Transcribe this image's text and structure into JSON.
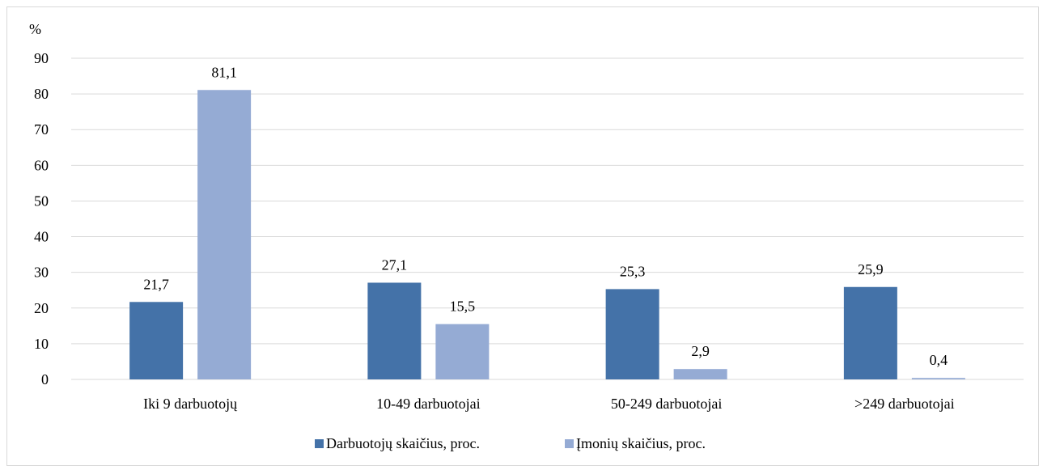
{
  "chart_data": {
    "type": "bar",
    "unit_label": "%",
    "ylim": [
      0,
      90
    ],
    "yticks": [
      "0",
      "10",
      "20",
      "30",
      "40",
      "50",
      "60",
      "70",
      "80",
      "90"
    ],
    "grid": true,
    "legend_position": "bottom",
    "categories": [
      "Iki 9 darbuotojų",
      "10-49 darbuotojai",
      "50-249 darbuotojai",
      ">249 darbuotojai"
    ],
    "series": [
      {
        "name": "Darbuotojų skaičius, proc.",
        "color": "#4472a8",
        "values": [
          21.7,
          27.1,
          25.3,
          25.9
        ],
        "labels": [
          "21,7",
          "27,1",
          "25,3",
          "25,9"
        ]
      },
      {
        "name": "Įmonių skaičius, proc.",
        "color": "#95abd4",
        "values": [
          81.1,
          15.5,
          2.9,
          0.4
        ],
        "labels": [
          "81,1",
          "15,5",
          "2,9",
          "0,4"
        ]
      }
    ]
  }
}
